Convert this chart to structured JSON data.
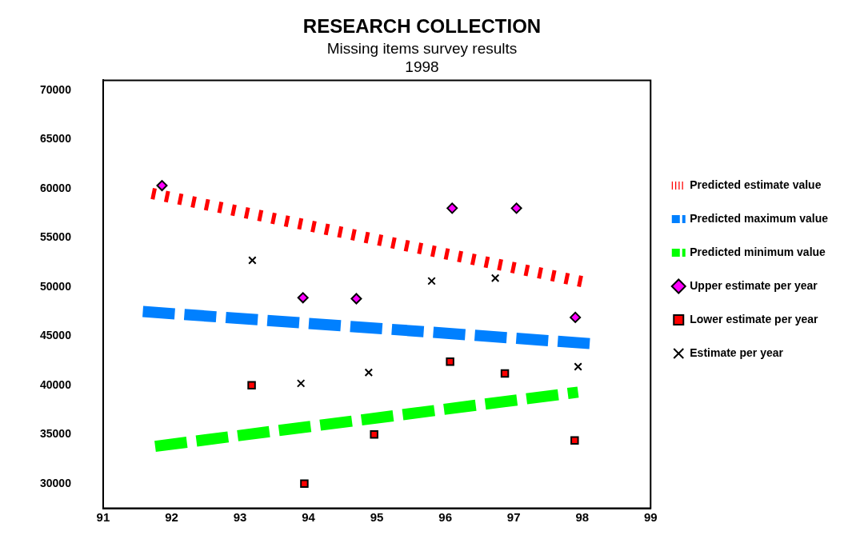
{
  "chart_data": {
    "type": "scatter",
    "title": "RESEARCH COLLECTION",
    "subtitle": "Missing items survey results\n1998",
    "xlim": [
      91,
      99
    ],
    "xticks": [
      91,
      92,
      93,
      94,
      95,
      96,
      97,
      98,
      99
    ],
    "ylim": [
      27500,
      71000
    ],
    "yticks": [
      30000,
      35000,
      40000,
      45000,
      50000,
      55000,
      60000,
      65000,
      70000
    ],
    "grid": false,
    "legend": "right",
    "series": [
      {
        "name": "Predicted estimate value",
        "type": "line",
        "color": "#ff0000",
        "line_style": "dotted",
        "marker": "none",
        "x": [
          91.71,
          98.02
        ],
        "values": [
          59500,
          50500
        ]
      },
      {
        "name": "Predicted maximum value",
        "type": "line",
        "color": "#0080ff",
        "line_style": "dashed",
        "marker": "none",
        "x": [
          91.58,
          98.19
        ],
        "values": [
          47500,
          44200
        ]
      },
      {
        "name": "Predicted minimum value",
        "type": "line",
        "color": "#00ff00",
        "line_style": "dashed",
        "marker": "none",
        "x": [
          91.76,
          97.94
        ],
        "values": [
          33800,
          39300
        ]
      },
      {
        "name": "Upper estimate per year",
        "color": "#ff00ff",
        "marker": "diamond",
        "x": [
          91.86,
          93.92,
          94.7,
          96.1,
          97.04,
          97.9
        ],
        "values": [
          60300,
          48900,
          48800,
          58000,
          58000,
          46900
        ]
      },
      {
        "name": "Lower estimate per year",
        "color": "#ff0000",
        "marker": "square",
        "x": [
          93.17,
          93.94,
          94.96,
          96.07,
          96.87,
          97.89
        ],
        "values": [
          40000,
          30000,
          35000,
          42400,
          41200,
          34400
        ]
      },
      {
        "name": "Estimate per year",
        "color": "#000000",
        "marker": "cross",
        "x": [
          93.18,
          93.89,
          94.88,
          95.8,
          96.73,
          97.94
        ],
        "values": [
          52700,
          40200,
          41300,
          50600,
          50900,
          41900
        ]
      }
    ]
  }
}
